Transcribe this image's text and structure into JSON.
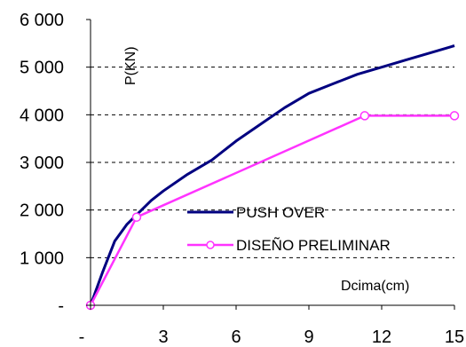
{
  "chart_data": {
    "type": "line",
    "title": "",
    "xlabel": "Dcima(cm)",
    "ylabel": "P(KN)",
    "xlim": [
      0,
      15
    ],
    "ylim": [
      0,
      6000
    ],
    "x_ticks": [
      {
        "value": 0,
        "label": "-"
      },
      {
        "value": 3,
        "label": "3"
      },
      {
        "value": 6,
        "label": "6"
      },
      {
        "value": 9,
        "label": "9"
      },
      {
        "value": 12,
        "label": "12"
      },
      {
        "value": 15,
        "label": "15"
      }
    ],
    "y_ticks": [
      {
        "value": 0,
        "label": "-"
      },
      {
        "value": 1000,
        "label": "1 000"
      },
      {
        "value": 2000,
        "label": "2 000"
      },
      {
        "value": 3000,
        "label": "3 000"
      },
      {
        "value": 4000,
        "label": "4 000"
      },
      {
        "value": 5000,
        "label": "5 000"
      },
      {
        "value": 6000,
        "label": "6 000"
      }
    ],
    "grid": {
      "horizontal": "dashed",
      "vertical": false
    },
    "legend_position": "bottom-right",
    "series": [
      {
        "name": "PUSH OVER",
        "color": "#000080",
        "markers": false,
        "x": [
          0,
          0.5,
          1.0,
          1.5,
          2.0,
          2.5,
          3.0,
          4.0,
          5.0,
          6.0,
          7.0,
          8.0,
          9.0,
          10.0,
          11.0,
          12.0,
          13.0,
          14.0,
          15.0
        ],
        "y": [
          0,
          700,
          1350,
          1700,
          1950,
          2200,
          2400,
          2750,
          3050,
          3450,
          3800,
          4150,
          4450,
          4650,
          4850,
          5000,
          5150,
          5300,
          5450
        ]
      },
      {
        "name": "DISEÑO PRELIMINAR",
        "color": "#ff33ff",
        "markers": true,
        "x": [
          0,
          1.9,
          11.3,
          15.0
        ],
        "y": [
          0,
          1850,
          3980,
          3980
        ]
      }
    ]
  }
}
